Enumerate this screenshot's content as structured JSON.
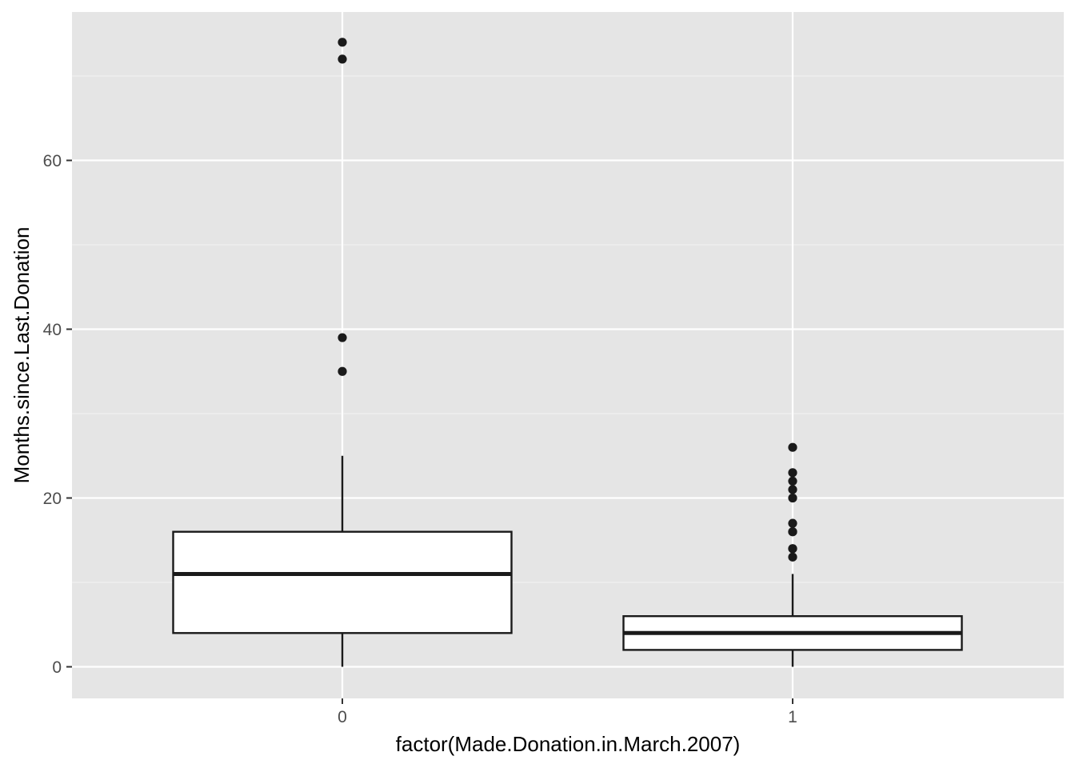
{
  "colors": {
    "panel_background": "#e5e5e5",
    "grid_major": "#ffffff",
    "grid_minor": "#f2f2f2",
    "box_fill": "#ffffff",
    "box_stroke": "#1a1a1a",
    "outlier": "#1a1a1a",
    "tick_text": "#4d4d4d",
    "tick_mark": "#333333"
  },
  "chart_data": {
    "type": "boxplot",
    "title": "",
    "xlabel": "factor(Made.Donation.in.March.2007)",
    "ylabel": "Months.since.Last.Donation",
    "categories": [
      "0",
      "1"
    ],
    "ylim": [
      -7.4,
      74
    ],
    "y_ticks": [
      0,
      20,
      40,
      60
    ],
    "grid": true,
    "boxes": [
      {
        "category": "0",
        "whisker_low": 0,
        "q1": 4,
        "median": 11,
        "q3": 16,
        "whisker_high": 25,
        "outliers": [
          35,
          39,
          72,
          74
        ]
      },
      {
        "category": "1",
        "whisker_low": 0,
        "q1": 2,
        "median": 4,
        "q3": 6,
        "whisker_high": 11,
        "outliers": [
          13,
          14,
          14,
          16,
          16,
          17,
          20,
          21,
          22,
          23,
          26
        ]
      }
    ]
  }
}
